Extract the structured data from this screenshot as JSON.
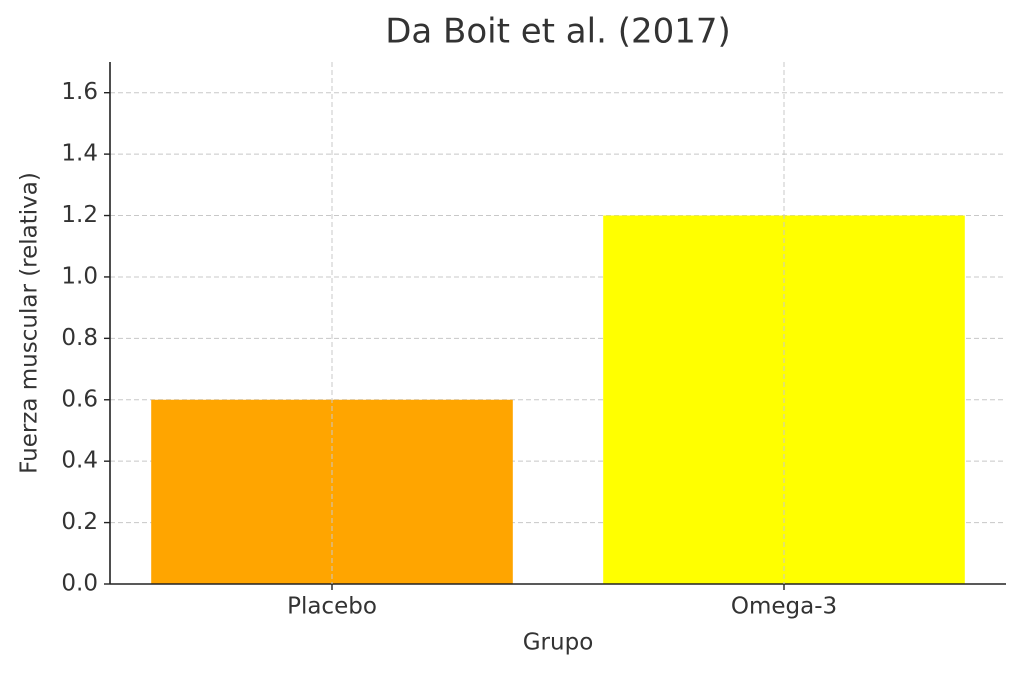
{
  "chart_data": {
    "type": "bar",
    "title": "Da Boit et al. (2017)",
    "xlabel": "Grupo",
    "ylabel": "Fuerza muscular (relativa)",
    "categories": [
      "Placebo",
      "Omega-3"
    ],
    "values": [
      0.6,
      1.2
    ],
    "colors": [
      "#ffa500",
      "#ffff00"
    ],
    "ylim": [
      0,
      1.7
    ],
    "yticks": [
      {
        "value": 0,
        "label": "0.0"
      },
      0.2,
      0.4,
      0.6,
      0.8,
      {
        "value": 1,
        "label": "1.0"
      },
      1.2,
      1.4,
      1.6
    ],
    "grid": true
  }
}
